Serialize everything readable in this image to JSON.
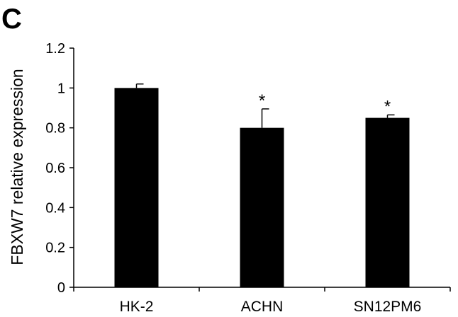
{
  "panel_label": "C",
  "chart_data": {
    "type": "bar",
    "title": "",
    "xlabel": "",
    "ylabel": "FBXW7 relative expression",
    "categories": [
      "HK-2",
      "ACHN",
      "SN12PM6"
    ],
    "values": [
      1.0,
      0.8,
      0.85
    ],
    "error_upper": [
      0.02,
      0.095,
      0.015
    ],
    "significance": [
      "",
      "*",
      "*"
    ],
    "ylim": [
      0,
      1.2
    ],
    "yticks": [
      "0",
      "0.2",
      "0.4",
      "0.6",
      "0.8",
      "1",
      "1.2"
    ],
    "grid": false,
    "legend": "none",
    "bar_color": "#000000"
  }
}
